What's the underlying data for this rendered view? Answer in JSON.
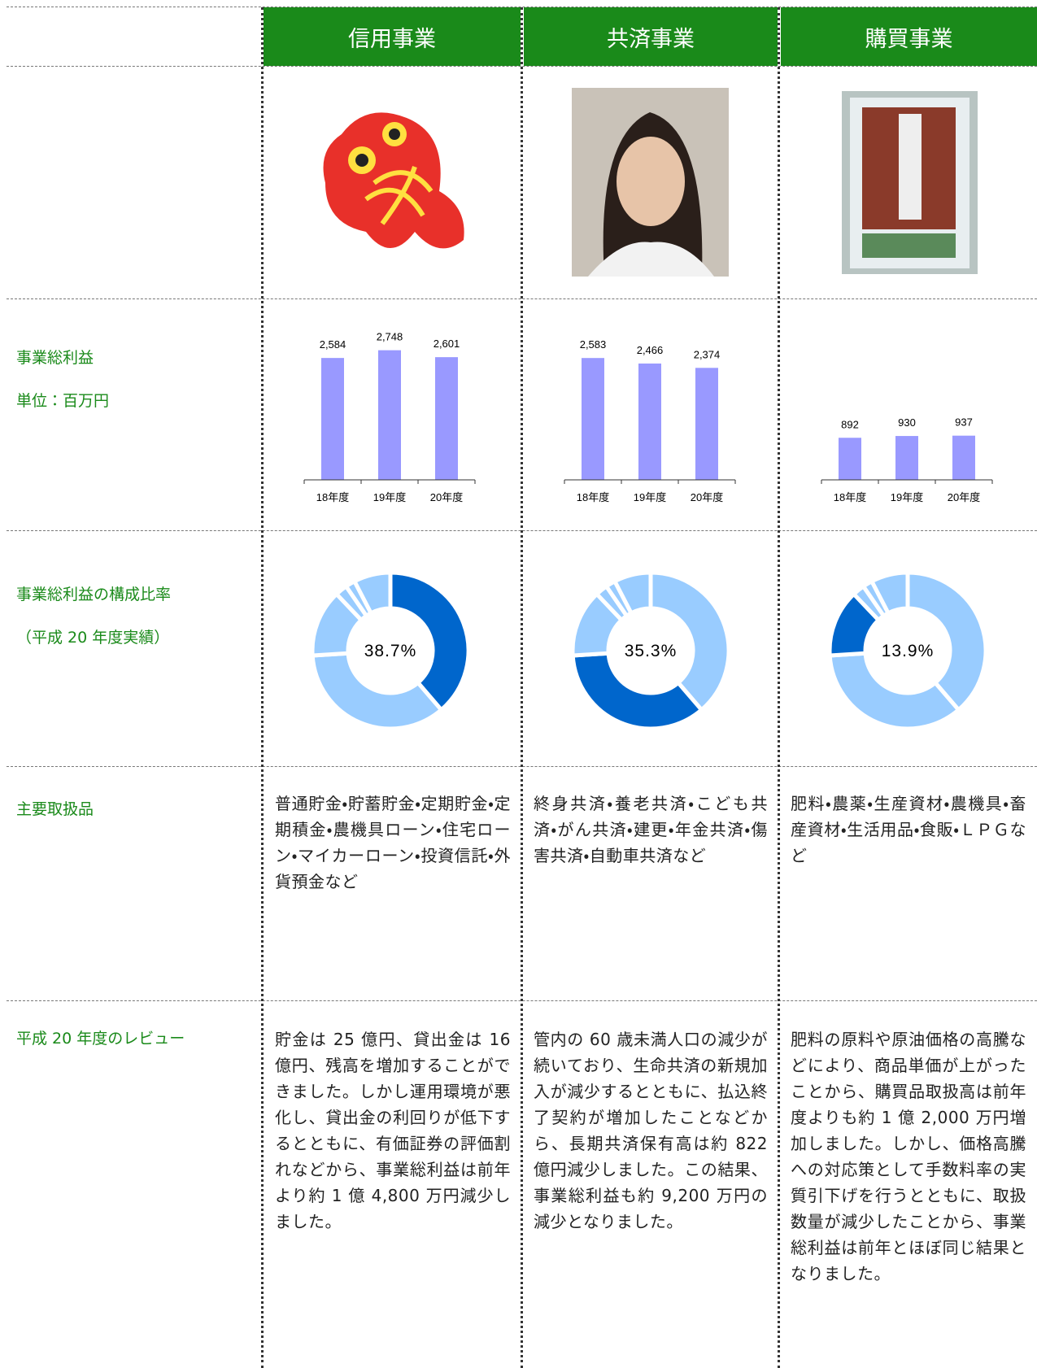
{
  "header": {
    "columns": [
      "信用事業",
      "共済事業",
      "購買事業"
    ]
  },
  "row_labels": {
    "profit": [
      "事業総利益",
      "単位：百万円"
    ],
    "composition": [
      "事業総利益の構成比率",
      "（平成 20 年度実績）"
    ],
    "products": "主要取扱品",
    "review": "平成 20 年度のレビュー"
  },
  "profit_charts": [
    {
      "type": "bar",
      "categories": [
        "18年度",
        "19年度",
        "20年度"
      ],
      "values": [
        2584,
        2748,
        2601
      ],
      "value_labels": [
        "2,584",
        "2,748",
        "2,601"
      ],
      "ylim": [
        0,
        3000
      ],
      "color": "#9999ff"
    },
    {
      "type": "bar",
      "categories": [
        "18年度",
        "19年度",
        "20年度"
      ],
      "values": [
        2583,
        2466,
        2374
      ],
      "value_labels": [
        "2,583",
        "2,466",
        "2,374"
      ],
      "ylim": [
        0,
        3000
      ],
      "color": "#9999ff"
    },
    {
      "type": "bar",
      "categories": [
        "18年度",
        "19年度",
        "20年度"
      ],
      "values": [
        892,
        930,
        937
      ],
      "ylim": [
        0,
        3000
      ],
      "color": "#9999ff"
    }
  ],
  "composition": {
    "type": "pie",
    "values": [
      38.7,
      35.3,
      13.9,
      2.5,
      2.0,
      7.6
    ],
    "value_labels": [
      "38.7%",
      "35.3%",
      "13.9%",
      null,
      null,
      null
    ],
    "color": "#99ccff",
    "highlight_color": "#0066cc"
  },
  "products": [
    "普通貯金・貯蓄貯金・定期貯金・定期積金・農機具ローン・住宅ローン・マイカーローン・投資信託・外貨預金など",
    "終身共済・養老共済・こども共済・がん共済・建更・年金共済・傷害共済・自動車共済など",
    "肥料・農薬・生産資材・農機具・畜産資材・生活用品・食販・ＬＰＧなど"
  ],
  "reviews": [
    "貯金は 25 億円、貸出金は 16 億円、残高を増加することができました。しかし運用環境が悪化し、貸出金の利回りが低下するとともに、有価証券の評価割れなどから、事業総利益は前年より約 1 億 4,800 万円減少しました。",
    "管内の 60 歳未満人口の減少が続いており、生命共済の新規加入が減少するとともに、払込終了契約が増加したことなどから、長期共済保有高は約 822 億円減少しました。この結果、事業総利益も約 9,200 万円の減少となりました。",
    "肥料の原料や原油価格の高騰などにより、商品単価が上がったことから、購買品取扱高は前年度よりも約 1 億 2,000 万円増加しました。しかし、価格高騰への対応策として手数料率の実質引下げを行うとともに、取扱数量が減少したことから、事業総利益は前年とほぼ同じ結果となりました。"
  ]
}
